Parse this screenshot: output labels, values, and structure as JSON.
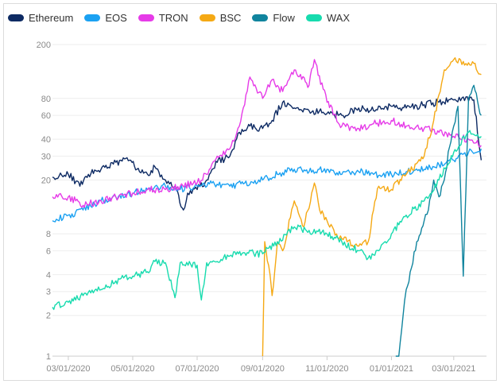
{
  "chart_data": {
    "type": "line",
    "title": "",
    "xlabel": "",
    "ylabel": "",
    "yscale": "log",
    "ylim": [
      1,
      200
    ],
    "y_ticks": [
      1,
      2,
      3,
      4,
      6,
      8,
      20,
      30,
      40,
      60,
      80,
      200
    ],
    "x_ticks": [
      "03/01/2020",
      "05/01/2020",
      "07/01/2020",
      "09/01/2020",
      "11/01/2020",
      "01/01/2021",
      "03/01/2021"
    ],
    "xlim": [
      "2020-02-15",
      "2021-04-01"
    ],
    "grid": true,
    "legend_position": "top-left",
    "series": [
      {
        "name": "Ethereum",
        "color": "#0d2a63",
        "points": [
          [
            "2020-02-15",
            21
          ],
          [
            "2020-03-01",
            22
          ],
          [
            "2020-03-12",
            18
          ],
          [
            "2020-03-20",
            22
          ],
          [
            "2020-04-01",
            24
          ],
          [
            "2020-04-15",
            27
          ],
          [
            "2020-04-28",
            28
          ],
          [
            "2020-05-05",
            24
          ],
          [
            "2020-05-15",
            22
          ],
          [
            "2020-05-22",
            25
          ],
          [
            "2020-06-01",
            20
          ],
          [
            "2020-06-10",
            18
          ],
          [
            "2020-06-18",
            12
          ],
          [
            "2020-06-22",
            16
          ],
          [
            "2020-07-01",
            17
          ],
          [
            "2020-07-10",
            20
          ],
          [
            "2020-07-20",
            27
          ],
          [
            "2020-08-01",
            30
          ],
          [
            "2020-08-10",
            45
          ],
          [
            "2020-08-20",
            50
          ],
          [
            "2020-09-01",
            48
          ],
          [
            "2020-09-10",
            55
          ],
          [
            "2020-09-20",
            75
          ],
          [
            "2020-10-01",
            68
          ],
          [
            "2020-10-15",
            65
          ],
          [
            "2020-11-01",
            62
          ],
          [
            "2020-11-15",
            60
          ],
          [
            "2020-12-01",
            68
          ],
          [
            "2020-12-15",
            65
          ],
          [
            "2021-01-01",
            70
          ],
          [
            "2021-01-15",
            68
          ],
          [
            "2021-02-01",
            72
          ],
          [
            "2021-02-15",
            75
          ],
          [
            "2021-03-01",
            78
          ],
          [
            "2021-03-10",
            82
          ],
          [
            "2021-03-20",
            78
          ],
          [
            "2021-03-27",
            28
          ]
        ]
      },
      {
        "name": "EOS",
        "color": "#1ba1f2",
        "points": [
          [
            "2020-02-15",
            10
          ],
          [
            "2020-03-01",
            11
          ],
          [
            "2020-03-15",
            12
          ],
          [
            "2020-04-01",
            14
          ],
          [
            "2020-04-15",
            15
          ],
          [
            "2020-05-01",
            16
          ],
          [
            "2020-05-15",
            17
          ],
          [
            "2020-06-01",
            18
          ],
          [
            "2020-06-15",
            17
          ],
          [
            "2020-07-01",
            18
          ],
          [
            "2020-07-15",
            19
          ],
          [
            "2020-08-01",
            18
          ],
          [
            "2020-08-15",
            19
          ],
          [
            "2020-09-01",
            20
          ],
          [
            "2020-09-15",
            22
          ],
          [
            "2020-10-01",
            24
          ],
          [
            "2020-10-15",
            23
          ],
          [
            "2020-11-01",
            24
          ],
          [
            "2020-11-15",
            22
          ],
          [
            "2020-12-01",
            23
          ],
          [
            "2020-12-15",
            22
          ],
          [
            "2021-01-01",
            22
          ],
          [
            "2021-01-15",
            23
          ],
          [
            "2021-02-01",
            24
          ],
          [
            "2021-02-15",
            26
          ],
          [
            "2021-03-01",
            28
          ],
          [
            "2021-03-15",
            32
          ],
          [
            "2021-03-27",
            34
          ]
        ]
      },
      {
        "name": "TRON",
        "color": "#e63be8",
        "points": [
          [
            "2020-02-15",
            15
          ],
          [
            "2020-03-01",
            15
          ],
          [
            "2020-03-15",
            13
          ],
          [
            "2020-04-01",
            14
          ],
          [
            "2020-04-15",
            15
          ],
          [
            "2020-05-01",
            16
          ],
          [
            "2020-05-15",
            17
          ],
          [
            "2020-06-01",
            17
          ],
          [
            "2020-06-15",
            18
          ],
          [
            "2020-07-01",
            19
          ],
          [
            "2020-07-10",
            22
          ],
          [
            "2020-07-20",
            30
          ],
          [
            "2020-08-01",
            34
          ],
          [
            "2020-08-10",
            50
          ],
          [
            "2020-08-20",
            115
          ],
          [
            "2020-09-01",
            80
          ],
          [
            "2020-09-10",
            110
          ],
          [
            "2020-09-20",
            90
          ],
          [
            "2020-10-01",
            130
          ],
          [
            "2020-10-15",
            100
          ],
          [
            "2020-10-20",
            155
          ],
          [
            "2020-11-01",
            75
          ],
          [
            "2020-11-15",
            50
          ],
          [
            "2020-12-01",
            48
          ],
          [
            "2020-12-15",
            52
          ],
          [
            "2021-01-01",
            55
          ],
          [
            "2021-01-15",
            50
          ],
          [
            "2021-02-01",
            48
          ],
          [
            "2021-02-15",
            45
          ],
          [
            "2021-03-01",
            42
          ],
          [
            "2021-03-15",
            40
          ],
          [
            "2021-03-27",
            36
          ]
        ]
      },
      {
        "name": "BSC",
        "color": "#f5a914",
        "points": [
          [
            "2020-09-01",
            1
          ],
          [
            "2020-09-03",
            7
          ],
          [
            "2020-09-08",
            4
          ],
          [
            "2020-09-10",
            2.8
          ],
          [
            "2020-09-15",
            7
          ],
          [
            "2020-09-20",
            6
          ],
          [
            "2020-10-01",
            14
          ],
          [
            "2020-10-10",
            9
          ],
          [
            "2020-10-20",
            19
          ],
          [
            "2020-10-25",
            12
          ],
          [
            "2020-11-01",
            10
          ],
          [
            "2020-11-10",
            8
          ],
          [
            "2020-11-20",
            7
          ],
          [
            "2020-12-01",
            6.5
          ],
          [
            "2020-12-10",
            7
          ],
          [
            "2020-12-15",
            12
          ],
          [
            "2020-12-20",
            18
          ],
          [
            "2021-01-01",
            17
          ],
          [
            "2021-01-15",
            22
          ],
          [
            "2021-02-01",
            30
          ],
          [
            "2021-02-10",
            55
          ],
          [
            "2021-02-20",
            130
          ],
          [
            "2021-03-01",
            155
          ],
          [
            "2021-03-10",
            150
          ],
          [
            "2021-03-20",
            145
          ],
          [
            "2021-03-27",
            120
          ]
        ]
      },
      {
        "name": "Flow",
        "color": "#10849e",
        "points": [
          [
            "2021-01-05",
            1
          ],
          [
            "2021-01-08",
            1
          ],
          [
            "2021-01-12",
            2
          ],
          [
            "2021-01-15",
            3.1
          ],
          [
            "2021-01-20",
            4.5
          ],
          [
            "2021-01-25",
            7
          ],
          [
            "2021-02-01",
            10
          ],
          [
            "2021-02-05",
            12
          ],
          [
            "2021-02-10",
            20
          ],
          [
            "2021-02-15",
            15
          ],
          [
            "2021-02-20",
            20
          ],
          [
            "2021-02-25",
            35
          ],
          [
            "2021-03-01",
            50
          ],
          [
            "2021-03-05",
            70
          ],
          [
            "2021-03-10",
            3.9
          ],
          [
            "2021-03-15",
            80
          ],
          [
            "2021-03-20",
            100
          ],
          [
            "2021-03-27",
            60
          ]
        ]
      },
      {
        "name": "WAX",
        "color": "#17dbae",
        "points": [
          [
            "2020-02-15",
            2.3
          ],
          [
            "2020-03-01",
            2.5
          ],
          [
            "2020-03-15",
            2.8
          ],
          [
            "2020-04-01",
            3.1
          ],
          [
            "2020-04-15",
            3.6
          ],
          [
            "2020-05-01",
            3.9
          ],
          [
            "2020-05-15",
            4.2
          ],
          [
            "2020-05-22",
            5
          ],
          [
            "2020-06-01",
            4.9
          ],
          [
            "2020-06-10",
            2.7
          ],
          [
            "2020-06-15",
            4.9
          ],
          [
            "2020-07-01",
            4.7
          ],
          [
            "2020-07-05",
            2.6
          ],
          [
            "2020-07-10",
            4.9
          ],
          [
            "2020-07-20",
            5
          ],
          [
            "2020-08-01",
            5.5
          ],
          [
            "2020-08-15",
            5.8
          ],
          [
            "2020-09-01",
            5.7
          ],
          [
            "2020-09-15",
            7
          ],
          [
            "2020-10-01",
            9
          ],
          [
            "2020-10-15",
            8.5
          ],
          [
            "2020-11-01",
            8
          ],
          [
            "2020-11-15",
            7
          ],
          [
            "2020-12-01",
            6
          ],
          [
            "2020-12-10",
            5.3
          ],
          [
            "2020-12-20",
            6
          ],
          [
            "2021-01-01",
            8
          ],
          [
            "2021-01-15",
            11
          ],
          [
            "2021-02-01",
            14
          ],
          [
            "2021-02-15",
            20
          ],
          [
            "2021-03-01",
            32
          ],
          [
            "2021-03-15",
            45
          ],
          [
            "2021-03-27",
            42
          ]
        ]
      }
    ]
  }
}
